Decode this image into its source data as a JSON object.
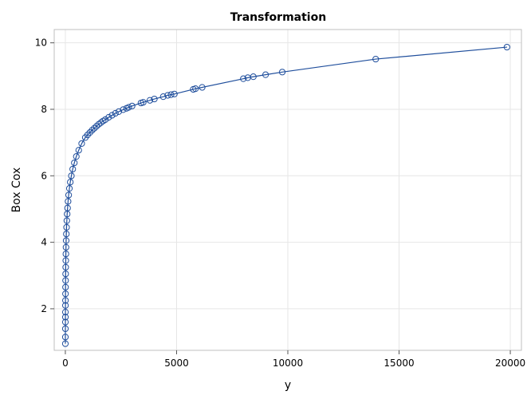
{
  "chart_data": {
    "type": "line",
    "title": "Transformation",
    "xlabel": "y",
    "ylabel": "Box Cox",
    "xlim": [
      -500,
      20500
    ],
    "ylim": [
      0.75,
      10.4
    ],
    "xticks": [
      0,
      5000,
      10000,
      15000,
      20000
    ],
    "yticks": [
      2,
      4,
      6,
      8,
      10
    ],
    "grid": true,
    "markers": "open-circle",
    "series": [
      {
        "name": "",
        "color": "#1f4e9c",
        "x": [
          1,
          1.4,
          2,
          2.7,
          3.3,
          4,
          5,
          6,
          7.4,
          9,
          11,
          13.5,
          16.4,
          20,
          25,
          30,
          37,
          45,
          55,
          67,
          82,
          100,
          122,
          149,
          182,
          222,
          271,
          331,
          404,
          493,
          602,
          735,
          897,
          1000,
          1100,
          1200,
          1300,
          1400,
          1500,
          1600,
          1700,
          1800,
          1950,
          2100,
          2250,
          2400,
          2600,
          2750,
          2850,
          3000,
          3400,
          3500,
          3800,
          4000,
          4400,
          4600,
          4750,
          4900,
          5750,
          5850,
          6150,
          8000,
          8200,
          8450,
          9000,
          9750,
          13950,
          19850
        ],
        "y": [
          0.95,
          1.15,
          1.4,
          1.6,
          1.75,
          1.9,
          2.1,
          2.25,
          2.45,
          2.65,
          2.85,
          3.05,
          3.25,
          3.45,
          3.65,
          3.85,
          4.05,
          4.25,
          4.45,
          4.65,
          4.85,
          5.03,
          5.23,
          5.42,
          5.62,
          5.81,
          6.0,
          6.2,
          6.39,
          6.58,
          6.77,
          6.97,
          7.15,
          7.23,
          7.3,
          7.37,
          7.43,
          7.49,
          7.55,
          7.6,
          7.65,
          7.69,
          7.76,
          7.82,
          7.88,
          7.93,
          7.99,
          8.03,
          8.06,
          8.1,
          8.19,
          8.21,
          8.27,
          8.31,
          8.38,
          8.42,
          8.44,
          8.46,
          8.6,
          8.62,
          8.66,
          8.92,
          8.95,
          8.98,
          9.04,
          9.12,
          9.51,
          9.87
        ]
      }
    ]
  }
}
